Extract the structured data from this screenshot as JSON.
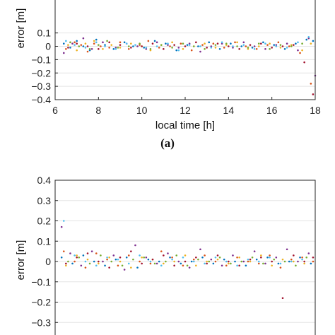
{
  "chart_data": [
    {
      "type": "scatter",
      "panel_label": "(a)",
      "xlabel": "local time [h]",
      "ylabel": "error [m]",
      "xlim": [
        6,
        18
      ],
      "ylim": [
        -0.4,
        0.4
      ],
      "xticks": [
        6,
        8,
        10,
        12,
        14,
        16,
        18
      ],
      "yticks": [
        -0.4,
        -0.3,
        -0.2,
        -0.1,
        0,
        0.1
      ],
      "ytick_labels": [
        "−0.4",
        "−0.3",
        "−0.2",
        "−0.1",
        "0",
        "0.1"
      ],
      "grid": true,
      "series_colors": [
        "#0072BD",
        "#D95319",
        "#EDB120",
        "#7E2F8E",
        "#77AC30",
        "#4DBEEE",
        "#A2142F"
      ],
      "series": [
        {
          "x": [
            6.4,
            6.7,
            7.0,
            7.3,
            7.6,
            7.9,
            8.3,
            8.7,
            9.2,
            9.6,
            10.1,
            10.6,
            11.1,
            11.6,
            12.1,
            12.6,
            13.1,
            13.6,
            14.1,
            14.6,
            15.1,
            15.6,
            16.1,
            16.6,
            17.1,
            17.6,
            17.9
          ],
          "y": [
            0.02,
            -0.01,
            0.04,
            0.0,
            -0.03,
            0.05,
            0.01,
            -0.02,
            0.03,
            0.0,
            -0.01,
            0.04,
            0.02,
            -0.03,
            0.01,
            0.0,
            0.03,
            -0.02,
            0.02,
            0.0,
            -0.01,
            0.03,
            0.01,
            -0.02,
            0.02,
            0.05,
            0.04
          ]
        },
        {
          "x": [
            6.5,
            6.9,
            7.2,
            7.5,
            7.8,
            8.1,
            8.5,
            9.0,
            9.4,
            9.9,
            10.3,
            10.8,
            11.3,
            11.8,
            12.3,
            12.8,
            13.3,
            13.8,
            14.3,
            14.8,
            15.3,
            15.8,
            16.3,
            16.8,
            17.3,
            17.8
          ],
          "y": [
            -0.02,
            0.03,
            0.01,
            -0.04,
            0.02,
            0.0,
            -0.01,
            0.03,
            -0.02,
            0.01,
            0.04,
            -0.01,
            0.0,
            0.02,
            -0.03,
            0.01,
            0.02,
            -0.01,
            0.03,
            0.0,
            -0.02,
            0.01,
            0.03,
            0.0,
            -0.05,
            -0.28
          ]
        },
        {
          "x": [
            6.6,
            7.0,
            7.4,
            7.8,
            8.2,
            8.6,
            9.0,
            9.5,
            10.0,
            10.4,
            10.9,
            11.4,
            11.9,
            12.4,
            12.9,
            13.4,
            13.9,
            14.4,
            14.9,
            15.4,
            15.9,
            16.4,
            16.9,
            17.4,
            17.8
          ],
          "y": [
            0.01,
            -0.03,
            0.02,
            0.04,
            -0.02,
            0.01,
            -0.01,
            0.02,
            0.0,
            -0.03,
            0.01,
            0.03,
            -0.02,
            0.0,
            0.02,
            -0.01,
            0.01,
            0.03,
            -0.02,
            0.0,
            0.02,
            -0.01,
            0.01,
            -0.03,
            0.02
          ]
        },
        {
          "x": [
            6.4,
            6.8,
            7.3,
            7.7,
            8.2,
            8.8,
            9.3,
            9.8,
            10.2,
            10.7,
            11.2,
            11.7,
            12.2,
            12.7,
            13.2,
            13.7,
            14.2,
            14.7,
            15.2,
            15.7,
            16.2,
            16.7,
            17.2,
            17.7,
            18.0
          ],
          "y": [
            -0.05,
            0.02,
            0.06,
            -0.02,
            0.03,
            -0.01,
            0.02,
            0.0,
            -0.02,
            0.03,
            0.01,
            -0.01,
            0.02,
            -0.04,
            0.0,
            0.02,
            -0.01,
            0.03,
            0.0,
            -0.02,
            0.01,
            0.02,
            -0.03,
            0.06,
            -0.22
          ]
        },
        {
          "x": [
            6.7,
            7.1,
            7.6,
            8.0,
            8.4,
            8.9,
            9.4,
            9.9,
            10.4,
            10.9,
            11.4,
            11.9,
            12.4,
            12.9,
            13.4,
            13.9,
            14.4,
            14.9,
            15.4,
            15.9,
            16.4,
            16.9,
            17.4
          ],
          "y": [
            0.03,
            0.0,
            -0.02,
            0.01,
            0.04,
            -0.01,
            0.0,
            0.02,
            -0.02,
            0.01,
            -0.01,
            0.02,
            0.0,
            -0.02,
            0.01,
            0.02,
            0.0,
            -0.01,
            0.02,
            -0.02,
            0.01,
            0.0,
            0.02
          ]
        },
        {
          "x": [
            6.5,
            6.9,
            7.4,
            7.9,
            8.3,
            8.8,
            9.3,
            9.7,
            10.2,
            10.7,
            11.2,
            11.7,
            12.2,
            12.7,
            13.2,
            13.7,
            14.2,
            14.7,
            15.2,
            15.7,
            16.2,
            16.7,
            17.2,
            17.7
          ],
          "y": [
            0.04,
            0.01,
            -0.01,
            0.03,
            0.0,
            -0.02,
            0.02,
            0.01,
            -0.01,
            0.0,
            0.02,
            -0.03,
            0.01,
            0.0,
            -0.01,
            0.03,
            0.0,
            0.01,
            -0.02,
            0.02,
            0.0,
            -0.01,
            0.03,
            0.07
          ]
        },
        {
          "x": [
            6.6,
            7.0,
            7.5,
            8.0,
            8.5,
            9.0,
            9.5,
            10.0,
            10.5,
            11.0,
            11.5,
            12.0,
            12.5,
            13.0,
            13.5,
            14.0,
            14.5,
            15.0,
            15.5,
            16.0,
            16.5,
            17.0,
            17.5,
            17.9
          ],
          "y": [
            -0.01,
            0.02,
            0.0,
            -0.02,
            0.03,
            0.01,
            -0.01,
            0.0,
            0.02,
            -0.02,
            0.01,
            0.0,
            0.03,
            -0.01,
            0.02,
            0.0,
            -0.02,
            0.01,
            0.02,
            -0.01,
            0.0,
            0.01,
            -0.12,
            -0.36
          ]
        }
      ]
    },
    {
      "type": "scatter",
      "xlabel": "",
      "ylabel": "error [m]",
      "xlim": [
        6,
        18
      ],
      "ylim": [
        -0.4,
        0.4
      ],
      "yticks": [
        -0.3,
        -0.2,
        -0.1,
        0,
        0.1,
        0.2,
        0.3,
        0.4
      ],
      "ytick_labels": [
        "−0.3",
        "−0.2",
        "−0.1",
        "0",
        "0.1",
        "0.2",
        "0.3",
        "0.4"
      ],
      "grid": true,
      "series_colors": [
        "#0072BD",
        "#D95319",
        "#EDB120",
        "#7E2F8E",
        "#77AC30",
        "#4DBEEE",
        "#A2142F"
      ],
      "series": [
        {
          "x": [
            6.3,
            6.8,
            7.3,
            7.8,
            8.3,
            8.8,
            9.3,
            9.8,
            10.3,
            10.8,
            11.3,
            11.8,
            12.3,
            12.8,
            13.3,
            13.8,
            14.3,
            14.8,
            15.3,
            15.8,
            16.3,
            16.8,
            17.3,
            17.8
          ],
          "y": [
            0.02,
            -0.01,
            0.03,
            0.0,
            -0.02,
            0.01,
            0.02,
            -0.03,
            0.01,
            0.0,
            0.02,
            -0.01,
            0.0,
            0.02,
            -0.01,
            0.01,
            0.0,
            -0.02,
            0.01,
            0.02,
            -0.01,
            0.0,
            0.02,
            -0.01
          ]
        },
        {
          "x": [
            6.4,
            6.9,
            7.4,
            7.9,
            8.4,
            8.9,
            9.4,
            9.9,
            10.4,
            10.9,
            11.4,
            11.9,
            12.4,
            12.9,
            13.4,
            13.9,
            14.4,
            14.9,
            15.4,
            15.9,
            16.4,
            16.9,
            17.4,
            17.9
          ],
          "y": [
            0.05,
            0.0,
            -0.03,
            0.04,
            0.01,
            -0.02,
            0.03,
            0.0,
            -0.01,
            0.05,
            0.02,
            -0.02,
            0.01,
            0.03,
            0.0,
            -0.02,
            0.02,
            0.0,
            -0.01,
            0.03,
            -0.03,
            0.01,
            0.02,
            0.0
          ]
        },
        {
          "x": [
            6.5,
            7.0,
            7.5,
            8.0,
            8.5,
            9.0,
            9.5,
            10.0,
            10.5,
            11.0,
            11.5,
            12.0,
            12.5,
            13.0,
            13.5,
            14.0,
            14.5,
            15.0,
            15.5,
            16.0,
            16.5,
            17.0,
            17.5
          ],
          "y": [
            -0.02,
            0.03,
            0.01,
            -0.01,
            0.02,
            0.0,
            -0.03,
            0.02,
            0.01,
            -0.01,
            0.0,
            0.03,
            -0.02,
            0.0,
            0.01,
            -0.01,
            0.02,
            0.0,
            0.03,
            -0.02,
            0.01,
            0.0,
            -0.01
          ]
        },
        {
          "x": [
            6.3,
            6.7,
            7.2,
            7.7,
            8.2,
            8.7,
            9.2,
            9.7,
            10.2,
            10.7,
            11.2,
            11.7,
            12.2,
            12.7,
            13.2,
            13.7,
            14.2,
            14.7,
            15.2,
            15.7,
            16.2,
            16.7,
            17.2,
            17.7
          ],
          "y": [
            0.17,
            0.04,
            -0.02,
            0.05,
            0.0,
            0.03,
            -0.04,
            0.08,
            0.02,
            -0.01,
            0.04,
            0.0,
            -0.03,
            0.06,
            0.01,
            -0.02,
            0.03,
            0.0,
            0.05,
            -0.01,
            0.02,
            0.06,
            0.0,
            0.04
          ]
        },
        {
          "x": [
            6.6,
            7.1,
            7.6,
            8.1,
            8.6,
            9.1,
            9.6,
            10.1,
            10.6,
            11.1,
            11.6,
            12.1,
            12.6,
            13.1,
            13.6,
            14.1,
            14.6,
            15.1,
            15.6,
            16.1,
            16.6,
            17.1,
            17.6
          ],
          "y": [
            0.0,
            0.02,
            -0.01,
            0.03,
            0.0,
            -0.02,
            0.01,
            0.02,
            -0.01,
            0.0,
            0.03,
            -0.02,
            0.01,
            0.0,
            0.02,
            -0.01,
            0.0,
            0.02,
            -0.01,
            0.01,
            0.0,
            -0.02,
            0.02
          ]
        },
        {
          "x": [
            6.4,
            6.9,
            7.4,
            7.9,
            8.4,
            8.9,
            9.4,
            9.9,
            10.4,
            10.9,
            11.4,
            11.9,
            12.4,
            12.9,
            13.4,
            13.9,
            14.4,
            14.9,
            15.4,
            15.9,
            16.4,
            16.9,
            17.4
          ],
          "y": [
            0.2,
            0.03,
            0.0,
            -0.02,
            0.02,
            0.01,
            -0.01,
            0.03,
            0.0,
            -0.02,
            0.01,
            0.02,
            0.0,
            -0.01,
            0.02,
            0.0,
            -0.02,
            0.01,
            0.0,
            0.02,
            -0.01,
            0.0,
            0.01
          ]
        },
        {
          "x": [
            6.5,
            7.0,
            7.5,
            8.0,
            8.5,
            9.0,
            9.5,
            10.0,
            10.5,
            11.0,
            11.5,
            12.0,
            12.5,
            13.0,
            13.5,
            14.0,
            14.5,
            15.0,
            15.5,
            16.0,
            16.5,
            17.0,
            17.5,
            17.9
          ],
          "y": [
            -0.01,
            0.02,
            0.04,
            0.0,
            -0.03,
            0.02,
            0.05,
            -0.01,
            0.01,
            0.03,
            -0.02,
            0.0,
            0.02,
            -0.01,
            0.03,
            0.0,
            -0.02,
            0.01,
            0.02,
            0.0,
            -0.18,
            0.03,
            0.0,
            0.02
          ]
        }
      ]
    }
  ]
}
